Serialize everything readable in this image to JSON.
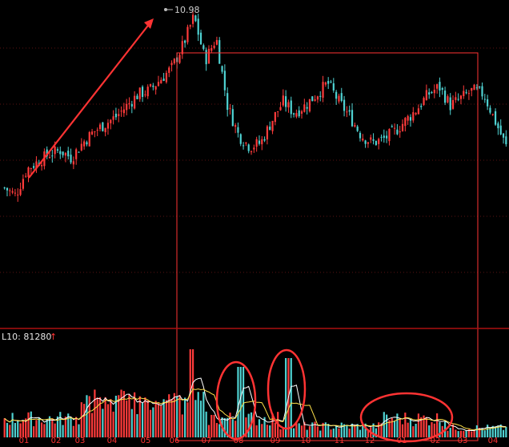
{
  "chart_data": [
    {
      "type": "candlestick",
      "title": "",
      "xlabel": "",
      "ylabel": "",
      "peak_label": "10.98",
      "grid": "horizontal dotted",
      "colors": {
        "up": "#ff3b3b",
        "down": "#4fd2d2",
        "annotation": "#ff3333",
        "background": "#000000"
      },
      "month_ticks": [
        "01",
        "02",
        "03",
        "04",
        "05",
        "06",
        "07",
        "08",
        "09",
        "10",
        "11",
        "12",
        "01",
        "02",
        "03",
        "04"
      ],
      "weekly_close_outline": [
        6.4,
        6.2,
        6.9,
        7.1,
        7.3,
        7.4,
        7.2,
        7.6,
        7.9,
        8.1,
        8.3,
        8.6,
        8.9,
        9.0,
        9.3,
        9.6,
        10.2,
        10.98,
        9.8,
        10.4,
        8.6,
        7.8,
        7.5,
        7.6,
        8.2,
        8.7,
        8.4,
        8.6,
        8.9,
        9.2,
        8.7,
        8.3,
        7.8,
        7.6,
        7.7,
        7.9,
        8.2,
        8.5,
        8.9,
        9.1,
        8.6,
        8.8,
        9.0,
        8.9,
        8.2,
        7.5
      ]
    },
    {
      "type": "bar",
      "title": "",
      "indicator_label": "L10: 81280",
      "trend_arrow": "↑",
      "lines": [
        "MA fast (white)",
        "MA slow (yellow)"
      ],
      "annotations": [
        "circle ~08",
        "circle ~09",
        "circle ~01-02"
      ]
    }
  ]
}
